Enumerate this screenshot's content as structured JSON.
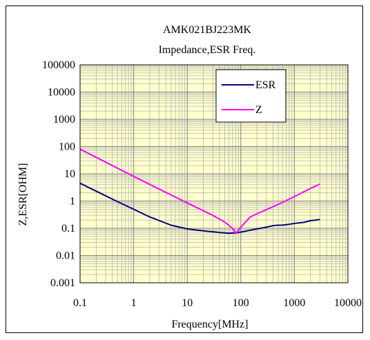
{
  "chart_data": {
    "type": "line",
    "title": "AMK021BJ223MK",
    "subtitle": "Impedance,ESR Freq.",
    "xlabel": "Frequency[MHz]",
    "ylabel": "Z,ESR[OHM]",
    "x_scale": "log",
    "y_scale": "log",
    "xlim": [
      0.1,
      10000
    ],
    "ylim": [
      0.001,
      100000
    ],
    "grid": true,
    "plot_background": "#ffffcc",
    "legend_position": "top-right",
    "x_ticks": [
      "0.1",
      "1",
      "10",
      "100",
      "1000",
      "10000"
    ],
    "y_ticks": [
      "100000",
      "10000",
      "1000",
      "100",
      "10",
      "1",
      "0.1",
      "0.01",
      "0.001"
    ],
    "series": [
      {
        "name": "ESR",
        "color": "#000080",
        "x": [
          0.1,
          0.2,
          0.5,
          1,
          2,
          5,
          10,
          20,
          40,
          60,
          80,
          100,
          150,
          200,
          300,
          400,
          500,
          600,
          800,
          1000,
          1500,
          2000,
          2500,
          3000
        ],
        "y": [
          4.5,
          2.3,
          0.95,
          0.5,
          0.26,
          0.13,
          0.095,
          0.08,
          0.07,
          0.066,
          0.068,
          0.072,
          0.085,
          0.095,
          0.11,
          0.125,
          0.13,
          0.13,
          0.14,
          0.15,
          0.165,
          0.19,
          0.2,
          0.21
        ]
      },
      {
        "name": "Z",
        "color": "#ff00ff",
        "x": [
          0.1,
          1,
          10,
          30,
          50,
          70,
          82,
          100,
          150,
          200,
          500,
          1000,
          2000,
          3000
        ],
        "y": [
          80,
          8,
          0.85,
          0.3,
          0.17,
          0.1,
          0.065,
          0.11,
          0.26,
          0.34,
          0.75,
          1.45,
          2.9,
          4.2
        ]
      }
    ]
  }
}
